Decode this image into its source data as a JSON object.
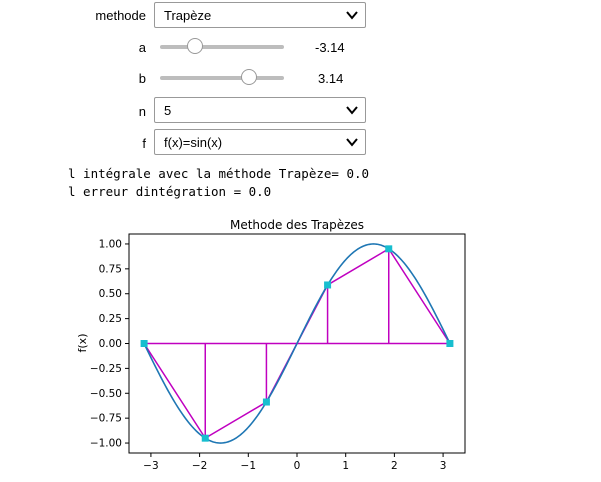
{
  "controls": {
    "methode": {
      "label": "methode",
      "value": "Trapèze"
    },
    "a": {
      "label": "a",
      "value": -3.14,
      "display": "-3.14",
      "min": -6.28,
      "max": 6.28
    },
    "b": {
      "label": "b",
      "value": 3.14,
      "display": "3.14",
      "min": -6.28,
      "max": 6.28
    },
    "n": {
      "label": "n",
      "value": "5"
    },
    "f": {
      "label": "f",
      "value": "f(x)=sin(x)"
    }
  },
  "output": {
    "line1": "l intégrale avec la méthode Trapèze= 0.0",
    "line2": "l erreur dintégration = 0.0"
  },
  "colors": {
    "curve": "#1f77b4",
    "trapezoid": "#c000c0",
    "markers": "#17becf"
  },
  "chart_data": {
    "type": "line",
    "title": "Methode des Trapèzes",
    "xlabel": "",
    "ylabel": "f(x)",
    "xlim": [
      -3.45,
      3.45
    ],
    "ylim": [
      -1.1,
      1.1
    ],
    "xticks": [
      -3,
      -2,
      -1,
      0,
      1,
      2,
      3
    ],
    "xtick_labels": [
      "−3",
      "−2",
      "−1",
      "0",
      "1",
      "2",
      "3"
    ],
    "yticks": [
      1.0,
      0.75,
      0.5,
      0.25,
      0.0,
      -0.25,
      -0.5,
      -0.75,
      -1.0
    ],
    "ytick_labels": [
      "1.00",
      "0.75",
      "0.50",
      "0.25",
      "0.00",
      "−0.25",
      "−0.50",
      "−0.75",
      "−1.00"
    ],
    "series": [
      {
        "kind": "curve",
        "function": "sin",
        "x_range": [
          -3.14,
          3.14
        ]
      },
      {
        "kind": "trapezoid",
        "x": [
          -3.14,
          -1.884,
          -0.628,
          0.628,
          1.884,
          3.14
        ],
        "y": [
          0.0,
          -0.951,
          -0.588,
          0.588,
          0.951,
          0.0
        ]
      }
    ]
  }
}
